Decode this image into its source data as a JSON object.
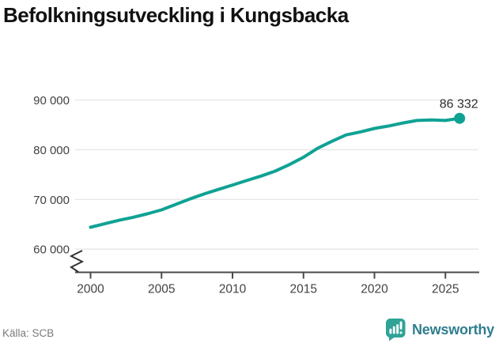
{
  "title": "Befolkningsutveckling i Kungsbacka",
  "source": {
    "label": "Källa: SCB"
  },
  "branding": {
    "name": "Newsworthy",
    "icon": "newsworthy-bubble-chart-icon",
    "icon_color": "#2EA396",
    "text_color": "#2F7E8E"
  },
  "chart_data": {
    "type": "line",
    "title": "Befolkningsutveckling i Kungsbacka",
    "xlabel": "",
    "ylabel": "",
    "x_ticks": [
      2000,
      2005,
      2010,
      2015,
      2020,
      2025
    ],
    "y_ticks": [
      60000,
      70000,
      80000,
      90000
    ],
    "y_tick_labels": [
      "60 000",
      "70 000",
      "80 000",
      "90 000"
    ],
    "ylim": [
      57500,
      91500
    ],
    "xlim": [
      1999.5,
      2027
    ],
    "grid": "horizontal",
    "axis_break": true,
    "line_color": "#0FA294",
    "label_color": "#2d2d2d",
    "tick_color": "#424242",
    "grid_color": "#e3e3e3",
    "axis_color": "#4a4a4a",
    "end_label": "86 332",
    "end_value": 86332,
    "series": [
      {
        "name": "Befolkning",
        "x": [
          2000,
          2001,
          2002,
          2003,
          2004,
          2005,
          2006,
          2007,
          2008,
          2009,
          2010,
          2011,
          2012,
          2013,
          2014,
          2015,
          2016,
          2017,
          2018,
          2019,
          2020,
          2021,
          2022,
          2023,
          2024,
          2025,
          2026
        ],
        "values": [
          64400,
          65100,
          65800,
          66400,
          67100,
          67900,
          69000,
          70100,
          71100,
          72000,
          72900,
          73800,
          74700,
          75700,
          77000,
          78500,
          80300,
          81700,
          83000,
          83600,
          84300,
          84800,
          85400,
          85900,
          86000,
          85900,
          86332
        ]
      }
    ]
  }
}
